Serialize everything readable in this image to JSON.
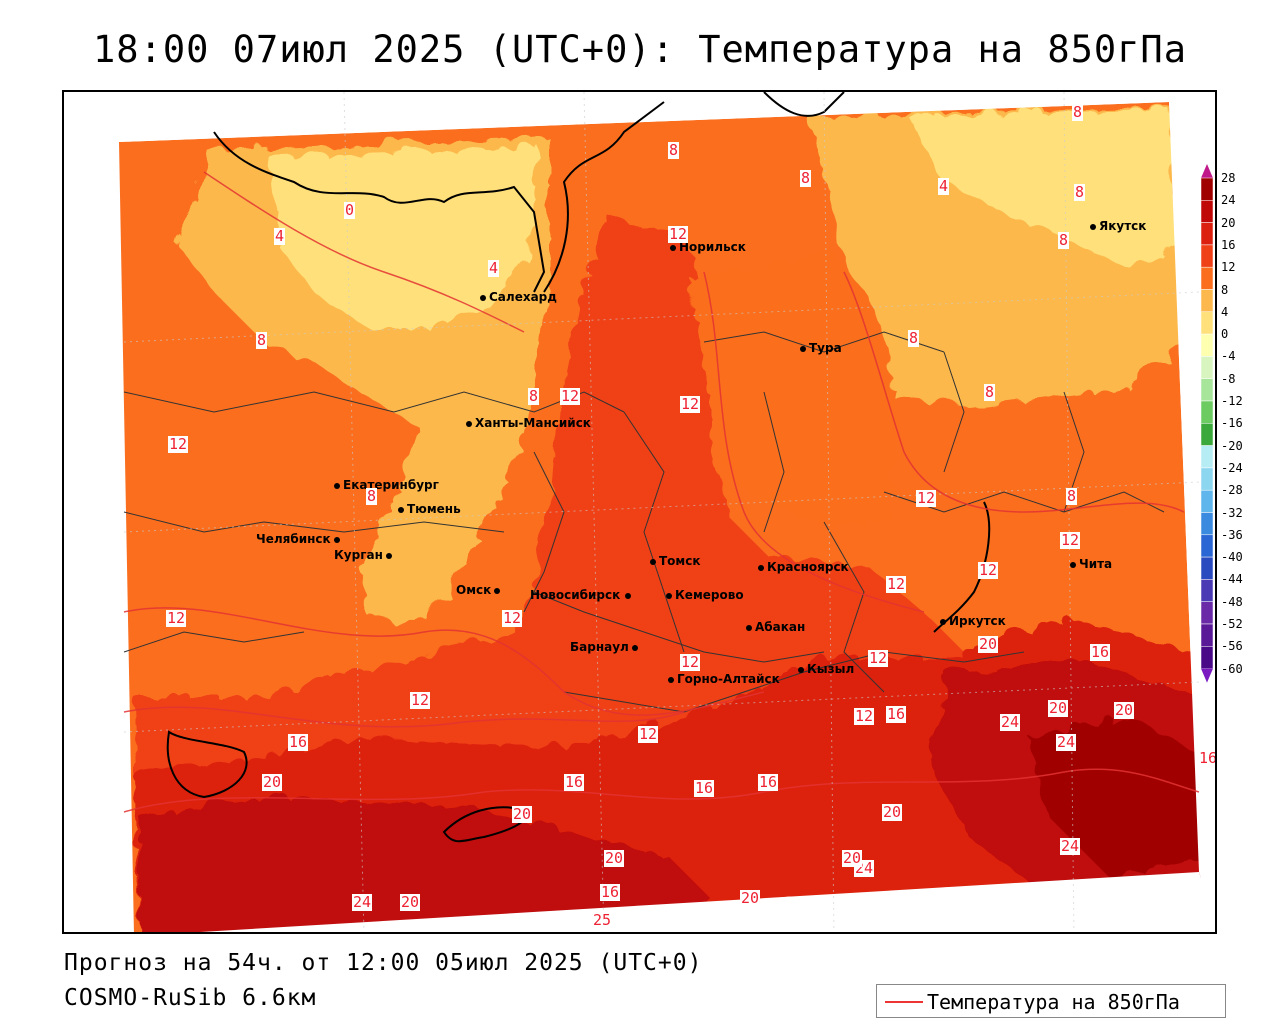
{
  "title": "18:00 07июл 2025 (UTC+0): Температура на 850гПа",
  "forecast_line": "Прогноз на 54ч. от 12:00 05июл 2025 (UTC+0)",
  "model_line": "COSMO-RuSib 6.6км",
  "legend_label": "Температура на 850гПа",
  "colors": {
    "contour": "#e33333",
    "t0_4": "#ffe07a",
    "t4_8": "#fcb84c",
    "t8_12": "#fa6e1e",
    "t12_16": "#f04018",
    "t16_20": "#dc2010",
    "t20_24": "#c00808",
    "t24_28": "#a00000"
  },
  "scale": {
    "labels": [
      "28",
      "24",
      "20",
      "16",
      "12",
      "8",
      "4",
      "0",
      "-4",
      "-8",
      "-12",
      "-16",
      "-20",
      "-24",
      "-28",
      "-32",
      "-36",
      "-40",
      "-44",
      "-48",
      "-52",
      "-56",
      "-60"
    ],
    "colors": [
      "#a00000",
      "#c00808",
      "#dc2010",
      "#f04018",
      "#fa6e1e",
      "#fcb84c",
      "#ffe07a",
      "#ffffb0",
      "#d8f5c0",
      "#a6e59a",
      "#6ccc62",
      "#3aa83a",
      "#b6ecf4",
      "#8cd6f0",
      "#5eb6ec",
      "#3a8ae0",
      "#2a66d4",
      "#2a4ac0",
      "#4a3ab4",
      "#6a2aa8",
      "#5a1a98",
      "#4a0a88"
    ]
  },
  "cities": [
    {
      "name": "Норильск"
    },
    {
      "name": "Якутск"
    },
    {
      "name": "Салехард"
    },
    {
      "name": "Тура"
    },
    {
      "name": "Ханты-Мансийск"
    },
    {
      "name": "Екатеринбург"
    },
    {
      "name": "Тюмень"
    },
    {
      "name": "Челябинск"
    },
    {
      "name": "Курган"
    },
    {
      "name": "Томск"
    },
    {
      "name": "Красноярск"
    },
    {
      "name": "Омск"
    },
    {
      "name": "Новосибирск"
    },
    {
      "name": "Кемерово"
    },
    {
      "name": "Абакан"
    },
    {
      "name": "Иркутск"
    },
    {
      "name": "Чита"
    },
    {
      "name": "Барнаул"
    },
    {
      "name": "Горно-Алтайск"
    },
    {
      "name": "Кызыл"
    }
  ],
  "contour_labels": [
    "8",
    "8",
    "8",
    "4",
    "8",
    "8",
    "12",
    "0",
    "4",
    "4",
    "8",
    "8",
    "8",
    "12",
    "12",
    "8",
    "8",
    "12",
    "12",
    "8",
    "12",
    "12",
    "12",
    "12",
    "12",
    "12",
    "16",
    "12",
    "12",
    "12",
    "12",
    "16",
    "20",
    "20",
    "24",
    "20",
    "24",
    "16",
    "16",
    "16",
    "16",
    "20",
    "16",
    "20",
    "24",
    "20",
    "24",
    "20",
    "16",
    "20",
    "20",
    "24",
    "20",
    "25"
  ]
}
